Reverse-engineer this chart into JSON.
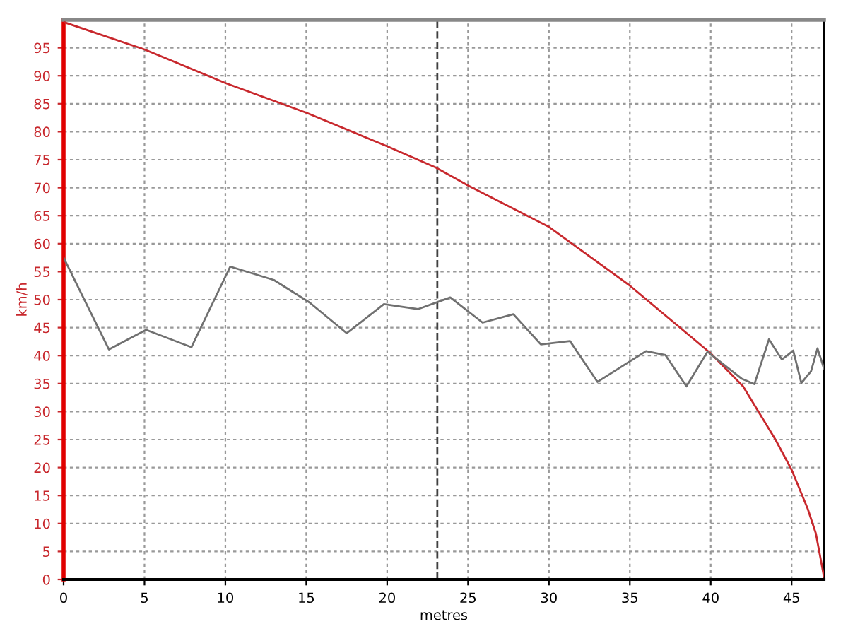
{
  "chart_data": {
    "type": "line",
    "xlabel": "metres",
    "ylabel": "km/h",
    "xlim": [
      0,
      47
    ],
    "xticks": [
      0,
      5,
      10,
      15,
      20,
      25,
      30,
      35,
      40,
      45
    ],
    "ylim": [
      0,
      100
    ],
    "yticks": [
      0,
      5,
      10,
      15,
      20,
      25,
      30,
      35,
      40,
      45,
      50,
      55,
      60,
      65,
      70,
      75,
      80,
      85,
      90,
      95
    ],
    "grid": true,
    "marker": "none",
    "line_style": "solid",
    "series": [
      {
        "color": "#c8282d",
        "x": [
          0,
          5,
          10,
          15,
          20,
          23,
          25,
          30,
          35,
          40,
          42,
          44,
          45,
          46,
          46.5,
          47
        ],
        "values": [
          99.6,
          94.7,
          88.7,
          83.4,
          77.4,
          73.6,
          70.4,
          63,
          52.5,
          40.4,
          34.5,
          25,
          19.6,
          12.6,
          8.2,
          0.5
        ]
      },
      {
        "color": "#707070",
        "x": [
          0,
          2.8,
          5.1,
          7.9,
          10.3,
          13,
          15.2,
          17.5,
          19.8,
          21.9,
          23.9,
          25.9,
          27.8,
          29.5,
          31.3,
          33,
          36,
          37.2,
          38.5,
          39.8,
          41.9,
          42.7,
          43.6,
          44.4,
          45.1,
          45.6,
          46.2,
          46.6,
          47
        ],
        "values": [
          57.5,
          41.1,
          44.6,
          41.5,
          55.9,
          53.5,
          49.5,
          44,
          49.2,
          48.3,
          50.4,
          45.9,
          47.4,
          42,
          42.6,
          35.3,
          40.8,
          40.1,
          34.5,
          40.7,
          35.9,
          34.9,
          42.9,
          39.3,
          40.9,
          35.1,
          37.2,
          41.3,
          37.7
        ]
      }
    ],
    "ref_lines": [
      {
        "axis": "x",
        "value": 23.1,
        "color": "#404040",
        "line_style": "dashed"
      }
    ]
  }
}
